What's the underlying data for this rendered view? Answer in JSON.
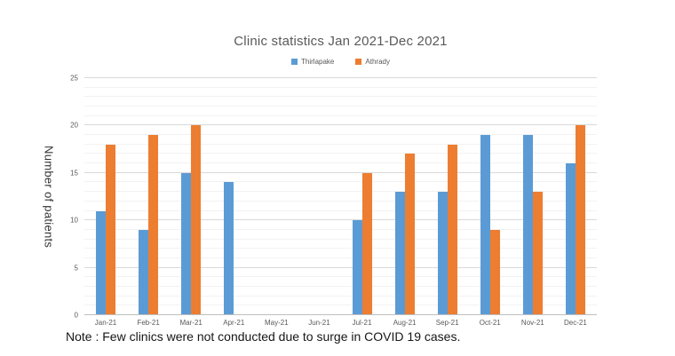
{
  "page": {
    "note": "Note : Few clinics were not conducted due to surge in COVID 19 cases."
  },
  "chart_data": {
    "type": "bar",
    "title": "Clinic statistics Jan 2021-Dec 2021",
    "xlabel": "",
    "ylabel": "Number of patients",
    "categories": [
      "Jan-21",
      "Feb-21",
      "Mar-21",
      "Apr-21",
      "May-21",
      "Jun-21",
      "Jul-21",
      "Aug-21",
      "Sep-21",
      "Oct-21",
      "Nov-21",
      "Dec-21"
    ],
    "series": [
      {
        "name": "Thirlapake",
        "color": "#5B9BD5",
        "values": [
          11,
          9,
          15,
          14,
          null,
          null,
          10,
          13,
          13,
          19,
          19,
          16
        ]
      },
      {
        "name": "Athrady",
        "color": "#ED7D31",
        "values": [
          18,
          19,
          20,
          null,
          null,
          null,
          15,
          17,
          18,
          9,
          13,
          20
        ]
      }
    ],
    "ylim": [
      0,
      25
    ],
    "yticks": [
      0,
      5,
      10,
      15,
      20,
      25
    ],
    "grid": {
      "major_step": 5,
      "minor_step": 1,
      "on": true
    },
    "legend_position": "top",
    "colors": {
      "title_text": "#595959",
      "axis_text": "#595959",
      "major_grid": "#d9d9d9",
      "minor_grid": "#f2f2f2",
      "axis_line": "#bfbfbf"
    }
  }
}
